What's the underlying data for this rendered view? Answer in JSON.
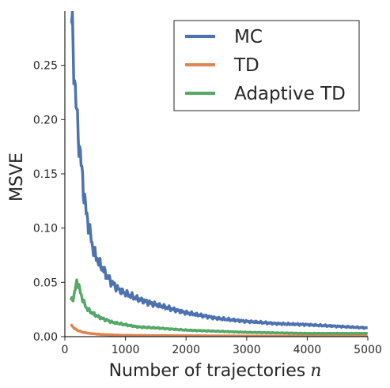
{
  "chart_data": {
    "type": "line",
    "title": "",
    "xlabel": "Number of trajectories",
    "xlabel_var": "n",
    "ylabel": "MSVE",
    "xlim": [
      0,
      5000
    ],
    "ylim": [
      0,
      0.3
    ],
    "xticks": [
      0,
      1000,
      2000,
      3000,
      4000,
      5000
    ],
    "xtick_labels": [
      "0",
      "1000",
      "2000",
      "3000",
      "4000",
      "5000"
    ],
    "yticks": [
      0,
      0.05,
      0.1,
      0.15,
      0.2,
      0.25
    ],
    "ytick_labels": [
      "0.00",
      "0.05",
      "0.10",
      "0.15",
      "0.20",
      "0.25"
    ],
    "grid": false,
    "legend_position": "top-right",
    "series": [
      {
        "name": "MC",
        "color": "#4c72b0",
        "x": [
          100,
          150,
          200,
          250,
          300,
          350,
          400,
          450,
          500,
          600,
          700,
          800,
          900,
          1000,
          1200,
          1400,
          1600,
          1800,
          2000,
          2500,
          3000,
          3500,
          4000,
          4500,
          5000
        ],
        "y": [
          0.3,
          0.25,
          0.2,
          0.17,
          0.14,
          0.115,
          0.1,
          0.085,
          0.075,
          0.065,
          0.055,
          0.048,
          0.043,
          0.04,
          0.035,
          0.031,
          0.028,
          0.025,
          0.022,
          0.017,
          0.014,
          0.012,
          0.011,
          0.0095,
          0.008
        ]
      },
      {
        "name": "TD",
        "color": "#dd8452",
        "x": [
          100,
          150,
          200,
          300,
          400,
          500,
          600,
          800,
          1000,
          1500,
          2000,
          3000,
          4000,
          5000
        ],
        "y": [
          0.011,
          0.008,
          0.006,
          0.004,
          0.003,
          0.0025,
          0.002,
          0.0015,
          0.0012,
          0.001,
          0.0008,
          0.0006,
          0.0005,
          0.0005
        ]
      },
      {
        "name": "Adaptive TD",
        "color": "#55a868",
        "x": [
          100,
          150,
          200,
          250,
          300,
          350,
          400,
          500,
          600,
          700,
          800,
          1000,
          1200,
          1500,
          2000,
          2500,
          3000,
          3500,
          4000,
          4500,
          5000
        ],
        "y": [
          0.033,
          0.037,
          0.052,
          0.042,
          0.033,
          0.027,
          0.024,
          0.02,
          0.017,
          0.015,
          0.013,
          0.011,
          0.009,
          0.008,
          0.006,
          0.005,
          0.004,
          0.0035,
          0.003,
          0.003,
          0.003
        ]
      }
    ]
  }
}
